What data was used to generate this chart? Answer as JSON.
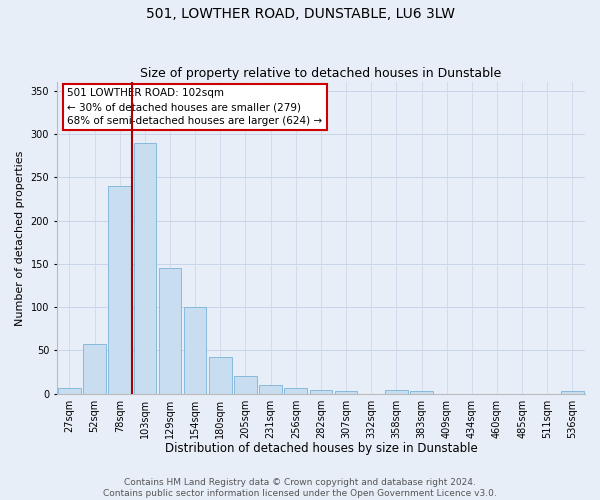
{
  "title": "501, LOWTHER ROAD, DUNSTABLE, LU6 3LW",
  "subtitle": "Size of property relative to detached houses in Dunstable",
  "xlabel": "Distribution of detached houses by size in Dunstable",
  "ylabel": "Number of detached properties",
  "categories": [
    "27sqm",
    "52sqm",
    "78sqm",
    "103sqm",
    "129sqm",
    "154sqm",
    "180sqm",
    "205sqm",
    "231sqm",
    "256sqm",
    "282sqm",
    "307sqm",
    "332sqm",
    "358sqm",
    "383sqm",
    "409sqm",
    "434sqm",
    "460sqm",
    "485sqm",
    "511sqm",
    "536sqm"
  ],
  "values": [
    7,
    57,
    240,
    290,
    145,
    100,
    42,
    20,
    10,
    6,
    4,
    3,
    0,
    4,
    3,
    0,
    0,
    0,
    0,
    0,
    3
  ],
  "bar_color": "#c8ddf0",
  "bar_edge_color": "#7ab3d8",
  "grid_color": "#c8d4e8",
  "background_color": "#e8eef8",
  "vline_color": "#aa0000",
  "annotation_text": "501 LOWTHER ROAD: 102sqm\n← 30% of detached houses are smaller (279)\n68% of semi-detached houses are larger (624) →",
  "annotation_box_color": "#ffffff",
  "annotation_border_color": "#cc0000",
  "footer_line1": "Contains HM Land Registry data © Crown copyright and database right 2024.",
  "footer_line2": "Contains public sector information licensed under the Open Government Licence v3.0.",
  "ylim": [
    0,
    360
  ],
  "yticks": [
    0,
    50,
    100,
    150,
    200,
    250,
    300,
    350
  ],
  "title_fontsize": 10,
  "subtitle_fontsize": 9,
  "xlabel_fontsize": 8.5,
  "ylabel_fontsize": 8,
  "tick_fontsize": 7,
  "annotation_fontsize": 7.5,
  "footer_fontsize": 6.5
}
